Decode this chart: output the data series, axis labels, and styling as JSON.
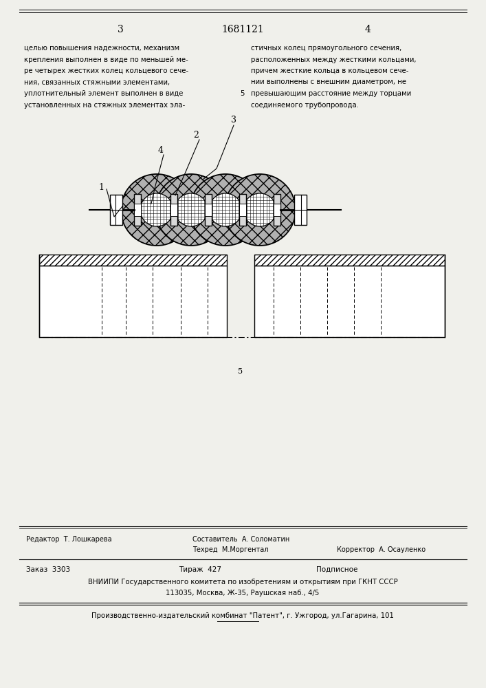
{
  "bg_color": "#f0f0eb",
  "page_width": 7.07,
  "page_height": 10.0,
  "page_num_left": "3",
  "page_num_center": "1681121",
  "page_num_right": "4",
  "col_text_left": "целью повышения надежности, механизм\nкрепления выполнен в виде по меньшей ме-\nре четырех жестких колец кольцевого сече-\nния, связанных стяжными элементами,\nуплотнительный элемент выполнен в виде\nустановленных на стяжных элементах эла-",
  "col_text_right": "стичных колец прямоугольного сечения,\nрасположенных между жесткими кольцами,\nпричем жесткие кольца в кольцевом сече-\nнии выполнены с внешним диаметром, не\nпревышающим расстояние между торцами\nсоединяемого трубопровода.",
  "col_number_5": "5",
  "drawing_label_1": "1",
  "drawing_label_2": "2",
  "drawing_label_3": "3",
  "drawing_label_4": "4",
  "small_label_5": "5",
  "footer_editor": "Редактор  Т. Лошкарева",
  "footer_compiler_label": "Составитель  А. Соломатин",
  "footer_tech_label": "Техред  М.Моргентал",
  "footer_corrector": "Корректор  А. Осауленко",
  "footer_order": "Заказ  3303",
  "footer_edition": "Тираж  427",
  "footer_subscription": "Подписное",
  "footer_vniip": "ВНИИПИ Государственного комитета по изобретениям и открытиям при ГКНТ СССР",
  "footer_address": "113035, Москва, Ж-35, Раушская наб., 4/5",
  "footer_plant": "Производственно-издательский комбинат \"Патент\", г. Ужгород, ул.Гагарина, 101"
}
